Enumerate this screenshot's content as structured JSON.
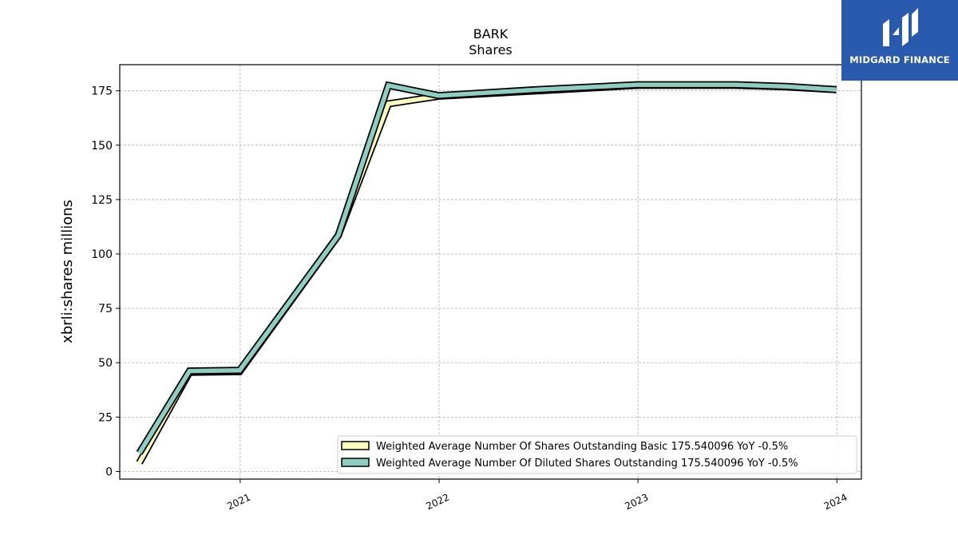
{
  "chart_data": {
    "type": "line",
    "title": "BARK",
    "subtitle": "Shares",
    "xlabel": "",
    "ylabel": "xbrli:shares millions",
    "x_ticks": [
      "2021",
      "2022",
      "2023",
      "2024"
    ],
    "y_ticks": [
      0,
      25,
      50,
      75,
      100,
      125,
      150,
      175
    ],
    "xlim": [
      "2020-05-25",
      "2024-02-15"
    ],
    "ylim": [
      -3.5,
      187
    ],
    "grid": true,
    "legend_position": "lower-right",
    "series": [
      {
        "name": "Weighted Average Number Of Shares Outstanding Basic  175.540096 YoY -0.5%",
        "color": "#ffffbf",
        "points": [
          {
            "x": "2020-06-30",
            "y": 4.0
          },
          {
            "x": "2020-09-30",
            "y": 45.6
          },
          {
            "x": "2020-12-31",
            "y": 45.9
          },
          {
            "x": "2021-06-30",
            "y": 108.5
          },
          {
            "x": "2021-09-30",
            "y": 169.0
          },
          {
            "x": "2021-12-31",
            "y": 172.5
          },
          {
            "x": "2022-06-30",
            "y": 175.0
          },
          {
            "x": "2022-12-31",
            "y": 177.5
          },
          {
            "x": "2023-06-30",
            "y": 177.5
          },
          {
            "x": "2023-09-30",
            "y": 176.8
          },
          {
            "x": "2023-12-31",
            "y": 175.5
          }
        ]
      },
      {
        "name": "Weighted Average Number Of Diluted Shares Outstanding  175.540096 YoY -0.5%",
        "color": "#8ecdc1",
        "points": [
          {
            "x": "2020-06-30",
            "y": 8.5
          },
          {
            "x": "2020-09-30",
            "y": 46.2
          },
          {
            "x": "2020-12-31",
            "y": 46.5
          },
          {
            "x": "2021-06-30",
            "y": 108.5
          },
          {
            "x": "2021-09-30",
            "y": 177.5
          },
          {
            "x": "2021-12-31",
            "y": 172.8
          },
          {
            "x": "2022-06-30",
            "y": 175.5
          },
          {
            "x": "2022-12-31",
            "y": 177.8
          },
          {
            "x": "2023-06-30",
            "y": 177.8
          },
          {
            "x": "2023-09-30",
            "y": 177.0
          },
          {
            "x": "2023-12-31",
            "y": 175.5
          }
        ]
      }
    ]
  },
  "logo": {
    "text": "MIDGARD FINANCE",
    "bg_color": "#2a5aad"
  }
}
